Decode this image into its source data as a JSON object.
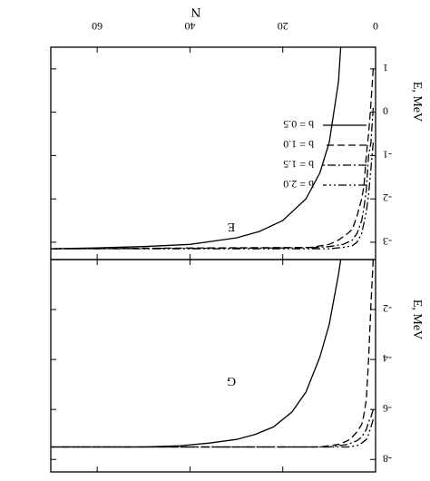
{
  "chart_data": [
    {
      "type": "line",
      "panel_label": "E",
      "xlabel": "N",
      "ylabel": "E, MeV",
      "xlim": [
        0,
        70
      ],
      "ylim": [
        0,
        -8.5
      ],
      "xticks": [
        0,
        20,
        40,
        60
      ],
      "xtick_labels": [
        "0",
        "20",
        "40",
        "60"
      ],
      "yticks": [
        -2,
        -4,
        -6,
        -8
      ],
      "ytick_labels": [
        "-2",
        "-4",
        "-6",
        "-8"
      ],
      "x_axis_side": "top",
      "y_axis_direction": "decreasing-upward",
      "grid": false,
      "series": [
        {
          "name": "b = 0.5",
          "style": "solid",
          "x": [
            7.5,
            8,
            10,
            12,
            15,
            18,
            22,
            26,
            30,
            36,
            42,
            50,
            60,
            70
          ],
          "y": [
            0.0,
            -0.6,
            -2.6,
            -3.9,
            -5.3,
            -6.1,
            -6.7,
            -7.0,
            -7.2,
            -7.35,
            -7.45,
            -7.5,
            -7.5,
            -7.5
          ]
        },
        {
          "name": "b = 1.0",
          "style": "dashed",
          "x": [
            0.5,
            1,
            1.5,
            2,
            2.5,
            3,
            4,
            5,
            6,
            8,
            12,
            20,
            70
          ],
          "y": [
            0.0,
            -1.8,
            -4.0,
            -5.6,
            -6.2,
            -6.6,
            -6.9,
            -7.1,
            -7.25,
            -7.4,
            -7.5,
            -7.5,
            -7.5
          ]
        },
        {
          "name": "b = 1.5",
          "style": "dash-dot",
          "x": [
            0.5,
            1,
            1.5,
            2,
            3,
            4,
            6,
            10,
            15,
            70
          ],
          "y": [
            -6.0,
            -6.3,
            -6.5,
            -6.8,
            -7.1,
            -7.25,
            -7.4,
            -7.5,
            -7.5,
            -7.5
          ]
        },
        {
          "name": "b = 2.0",
          "style": "dash-dot-dot",
          "x": [
            0.5,
            1,
            1.5,
            2,
            3,
            4,
            6,
            10,
            70
          ],
          "y": [
            -6.4,
            -6.7,
            -7.0,
            -7.2,
            -7.35,
            -7.45,
            -7.5,
            -7.5,
            -7.5
          ]
        }
      ]
    },
    {
      "type": "line",
      "panel_label": "G",
      "xlabel": "",
      "ylabel": "E, MeV",
      "xlim": [
        0,
        70
      ],
      "ylim": [
        1.5,
        -3.4
      ],
      "yticks": [
        1,
        0,
        -1,
        -2,
        -3
      ],
      "ytick_labels": [
        "1",
        "0",
        "-1",
        "-2",
        "-3"
      ],
      "y_axis_direction": "decreasing-upward",
      "grid": false,
      "legend": {
        "placement": "right-middle",
        "entries": [
          "b = 2.0",
          "b = 1.5",
          "b = 1.0",
          "b = 0.5"
        ]
      },
      "series": [
        {
          "name": "b = 0.5",
          "style": "solid",
          "x": [
            7.5,
            8,
            10,
            12,
            15,
            20,
            25,
            30,
            40,
            50,
            60,
            70
          ],
          "y": [
            1.5,
            0.7,
            -0.7,
            -1.4,
            -2.0,
            -2.5,
            -2.75,
            -2.9,
            -3.05,
            -3.1,
            -3.13,
            -3.15
          ]
        },
        {
          "name": "b = 1.0",
          "style": "dashed",
          "x": [
            0.5,
            1,
            1.5,
            2,
            2.5,
            3,
            4,
            5,
            6,
            8,
            10,
            14,
            70
          ],
          "y": [
            1.0,
            0.2,
            -0.5,
            -1.0,
            -1.7,
            -2.0,
            -2.4,
            -2.7,
            -2.8,
            -2.95,
            -3.05,
            -3.12,
            -3.15
          ]
        },
        {
          "name": "b = 1.5",
          "style": "dash-dot",
          "x": [
            0.5,
            1,
            1.5,
            2,
            2.5,
            3,
            4,
            5,
            7,
            10,
            14,
            70
          ],
          "y": [
            0.1,
            -0.7,
            -1.0,
            -1.8,
            -2.2,
            -2.5,
            -2.8,
            -2.95,
            -3.05,
            -3.1,
            -3.13,
            -3.15
          ]
        },
        {
          "name": "b = 2.0",
          "style": "dash-dot-dot",
          "x": [
            0.5,
            1,
            1.5,
            2,
            3,
            4,
            5,
            7,
            10,
            70
          ],
          "y": [
            -0.7,
            -1.3,
            -1.9,
            -2.3,
            -2.8,
            -3.0,
            -3.08,
            -3.12,
            -3.15,
            -3.15
          ]
        }
      ]
    }
  ]
}
